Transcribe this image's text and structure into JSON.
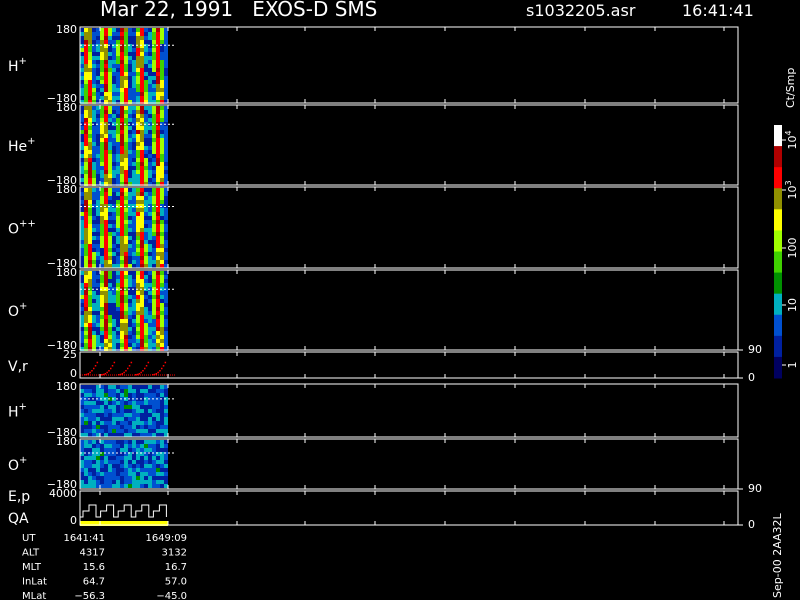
{
  "header": {
    "title": "Mar 22, 1991   EXOS-D SMS",
    "file": "s1032205.asr",
    "time": "16:41:41"
  },
  "panels": [
    {
      "species": "H",
      "charge": "+",
      "left_ticks": [
        "180",
        "−180"
      ],
      "right_ticks": []
    },
    {
      "species": "He",
      "charge": "+",
      "left_ticks": [
        "180",
        "−180"
      ],
      "right_ticks": []
    },
    {
      "species": "O",
      "charge": "++",
      "left_ticks": [
        "180",
        "−180"
      ],
      "right_ticks": []
    },
    {
      "species": "O",
      "charge": "+",
      "left_ticks": [
        "180",
        "−180"
      ],
      "right_ticks": []
    },
    {
      "species": "V,r",
      "charge": "",
      "left_ticks": [
        "25",
        "0"
      ],
      "right_ticks": [
        "90",
        "0"
      ]
    },
    {
      "species": "H",
      "charge": "+",
      "left_ticks": [
        "180",
        "−180"
      ],
      "right_ticks": []
    },
    {
      "species": "O",
      "charge": "+",
      "left_ticks": [
        "180",
        "−180"
      ],
      "right_ticks": []
    },
    {
      "species": "E,p",
      "charge": "",
      "extra": "QA",
      "left_ticks": [
        "4000",
        "0"
      ],
      "right_ticks": [
        "90",
        "0"
      ]
    }
  ],
  "colorbar": {
    "unit": "Ct/Smp",
    "labels": [
      {
        "base": "10",
        "exp": "4"
      },
      {
        "base": "10",
        "exp": "3"
      },
      {
        "base": "100",
        "exp": ""
      },
      {
        "base": "10",
        "exp": ""
      },
      {
        "base": "1",
        "exp": ""
      }
    ]
  },
  "footer": {
    "rows": [
      [
        "UT",
        "1641:41",
        "1649:09"
      ],
      [
        "ALT",
        "4317",
        "3132"
      ],
      [
        "MLT",
        "15.6",
        "16.7"
      ],
      [
        "InLat",
        "64.7",
        "57.0"
      ],
      [
        "MLat",
        "−56.3",
        "−45.0"
      ]
    ]
  },
  "version": "Sep-00  2AA32L"
}
